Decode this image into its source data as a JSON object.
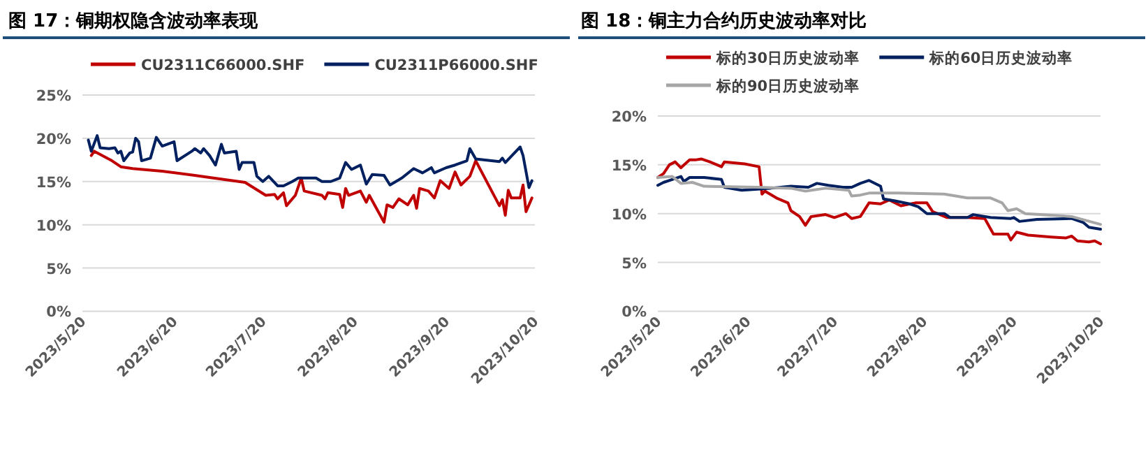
{
  "chart_data": [
    {
      "type": "line",
      "title": "图 17：铜期权隐含波动率表现",
      "legend": "top",
      "grid": "y",
      "marker": "none",
      "line_style": "solid",
      "xlim": [
        "2023-05-20",
        "2023-10-20"
      ],
      "xticks": [
        {
          "value": "2023-05-20",
          "label": "2023/5/20"
        },
        {
          "value": "2023-06-20",
          "label": "2023/6/20"
        },
        {
          "value": "2023-07-20",
          "label": "2023/7/20"
        },
        {
          "value": "2023-08-20",
          "label": "2023/8/20"
        },
        {
          "value": "2023-09-20",
          "label": "2023/9/20"
        },
        {
          "value": "2023-10-20",
          "label": "2023/10/20"
        }
      ],
      "ylim": [
        0,
        25
      ],
      "yticks": [
        {
          "value": 0,
          "label": "0%"
        },
        {
          "value": 5,
          "label": "5%"
        },
        {
          "value": 10,
          "label": "10%"
        },
        {
          "value": 15,
          "label": "15%"
        },
        {
          "value": 20,
          "label": "20%"
        },
        {
          "value": 25,
          "label": "25%"
        }
      ],
      "series": [
        {
          "name": "CU2311C66000.SHF",
          "color": "#c00000",
          "x": [
            "2023-05-23",
            "2023-05-24",
            "2023-05-30",
            "2023-06-02",
            "2023-06-06",
            "2023-06-16",
            "2023-06-27",
            "2023-07-14",
            "2023-07-21",
            "2023-07-24",
            "2023-07-25",
            "2023-07-27",
            "2023-07-28",
            "2023-07-31",
            "2023-08-02",
            "2023-08-03",
            "2023-08-09",
            "2023-08-10",
            "2023-08-11",
            "2023-08-15",
            "2023-08-16",
            "2023-08-17",
            "2023-08-18",
            "2023-08-22",
            "2023-08-24",
            "2023-08-25",
            "2023-08-30",
            "2023-08-31",
            "2023-09-02",
            "2023-09-04",
            "2023-09-07",
            "2023-09-09",
            "2023-09-10",
            "2023-09-11",
            "2023-09-14",
            "2023-09-16",
            "2023-09-18",
            "2023-09-21",
            "2023-09-23",
            "2023-09-25",
            "2023-09-28",
            "2023-09-30",
            "2023-10-08",
            "2023-10-09",
            "2023-10-10",
            "2023-10-11",
            "2023-10-12",
            "2023-10-15",
            "2023-10-16",
            "2023-10-17",
            "2023-10-19"
          ],
          "values": [
            18.0,
            18.5,
            17.4,
            16.7,
            16.5,
            16.2,
            15.7,
            14.9,
            13.4,
            13.5,
            13.0,
            13.7,
            12.2,
            13.4,
            15.4,
            13.9,
            13.4,
            13.0,
            13.7,
            13.5,
            12.0,
            14.2,
            13.4,
            13.9,
            12.6,
            13.4,
            10.3,
            12.3,
            12.0,
            13.0,
            12.3,
            13.4,
            11.9,
            14.2,
            13.9,
            13.1,
            15.1,
            14.2,
            16.1,
            14.6,
            15.6,
            17.4,
            12.2,
            12.9,
            11.1,
            14.0,
            13.1,
            13.1,
            14.6,
            11.5,
            13.1
          ]
        },
        {
          "name": "CU2311P66000.SHF",
          "color": "#002060",
          "x": [
            "2023-05-22",
            "2023-05-23",
            "2023-05-25",
            "2023-05-26",
            "2023-05-29",
            "2023-05-31",
            "2023-06-01",
            "2023-06-02",
            "2023-06-03",
            "2023-06-05",
            "2023-06-06",
            "2023-06-07",
            "2023-06-08",
            "2023-06-09",
            "2023-06-12",
            "2023-06-14",
            "2023-06-16",
            "2023-06-20",
            "2023-06-21",
            "2023-06-26",
            "2023-06-27",
            "2023-06-29",
            "2023-06-30",
            "2023-07-02",
            "2023-07-04",
            "2023-07-06",
            "2023-07-07",
            "2023-07-11",
            "2023-07-12",
            "2023-07-13",
            "2023-07-17",
            "2023-07-18",
            "2023-07-20",
            "2023-07-22",
            "2023-07-25",
            "2023-07-27",
            "2023-07-30",
            "2023-08-01",
            "2023-08-04",
            "2023-08-07",
            "2023-08-09",
            "2023-08-12",
            "2023-08-15",
            "2023-08-17",
            "2023-08-19",
            "2023-08-22",
            "2023-08-24",
            "2023-08-26",
            "2023-08-30",
            "2023-09-01",
            "2023-09-05",
            "2023-09-09",
            "2023-09-12",
            "2023-09-15",
            "2023-09-16",
            "2023-09-20",
            "2023-09-23",
            "2023-09-27",
            "2023-09-28",
            "2023-09-30",
            "2023-10-08",
            "2023-10-09",
            "2023-10-10",
            "2023-10-15",
            "2023-10-16",
            "2023-10-18",
            "2023-10-19"
          ],
          "values": [
            19.8,
            18.5,
            20.3,
            18.9,
            18.8,
            18.9,
            18.3,
            18.5,
            17.4,
            18.3,
            18.4,
            20.0,
            19.6,
            17.4,
            17.7,
            20.1,
            19.1,
            19.6,
            17.4,
            18.5,
            18.8,
            18.3,
            18.8,
            18.0,
            16.9,
            19.3,
            18.3,
            18.5,
            16.4,
            17.2,
            17.2,
            15.6,
            15.0,
            15.6,
            14.5,
            14.5,
            15.0,
            15.4,
            15.4,
            15.4,
            15.0,
            15.0,
            15.4,
            17.2,
            16.4,
            16.9,
            14.7,
            15.8,
            15.7,
            14.6,
            15.4,
            16.5,
            16.0,
            16.6,
            16.0,
            16.6,
            16.9,
            17.4,
            18.8,
            17.6,
            17.3,
            17.7,
            17.2,
            19.0,
            18.0,
            14.3,
            15.1
          ]
        }
      ]
    },
    {
      "type": "line",
      "title": "图 18：铜主力合约历史波动率对比",
      "legend": "top",
      "grid": "y",
      "marker": "none",
      "line_style": "solid",
      "xlim": [
        "2023-05-20",
        "2023-10-20"
      ],
      "xticks": [
        {
          "value": "2023-05-20",
          "label": "2023/5/20"
        },
        {
          "value": "2023-06-20",
          "label": "2023/6/20"
        },
        {
          "value": "2023-07-20",
          "label": "2023/7/20"
        },
        {
          "value": "2023-08-20",
          "label": "2023/8/20"
        },
        {
          "value": "2023-09-20",
          "label": "2023/9/20"
        },
        {
          "value": "2023-10-20",
          "label": "2023/10/20"
        }
      ],
      "ylim": [
        0,
        20
      ],
      "yticks": [
        {
          "value": 0,
          "label": "0%"
        },
        {
          "value": 5,
          "label": "5%"
        },
        {
          "value": 10,
          "label": "10%"
        },
        {
          "value": 15,
          "label": "15%"
        },
        {
          "value": 20,
          "label": "20%"
        }
      ],
      "series": [
        {
          "name": "标的30日历史波动率",
          "color": "#c00000",
          "x": [
            "2023-05-20",
            "2023-05-22",
            "2023-05-24",
            "2023-05-26",
            "2023-05-28",
            "2023-05-31",
            "2023-06-02",
            "2023-06-04",
            "2023-06-07",
            "2023-06-11",
            "2023-06-12",
            "2023-06-19",
            "2023-06-24",
            "2023-06-25",
            "2023-06-26",
            "2023-06-30",
            "2023-07-04",
            "2023-07-05",
            "2023-07-08",
            "2023-07-10",
            "2023-07-12",
            "2023-07-17",
            "2023-07-20",
            "2023-07-24",
            "2023-07-26",
            "2023-07-29",
            "2023-08-01",
            "2023-08-05",
            "2023-08-08",
            "2023-08-12",
            "2023-08-17",
            "2023-08-21",
            "2023-08-23",
            "2023-08-28",
            "2023-09-04",
            "2023-09-10",
            "2023-09-13",
            "2023-09-18",
            "2023-09-19",
            "2023-09-21",
            "2023-09-25",
            "2023-10-03",
            "2023-10-08",
            "2023-10-10",
            "2023-10-12",
            "2023-10-16",
            "2023-10-18",
            "2023-10-20"
          ],
          "values": [
            13.7,
            14.1,
            15.0,
            15.3,
            14.7,
            15.5,
            15.5,
            15.6,
            15.3,
            14.8,
            15.3,
            15.1,
            14.8,
            12.0,
            12.3,
            11.6,
            11.1,
            10.3,
            9.7,
            8.8,
            9.7,
            9.9,
            9.6,
            10.0,
            9.5,
            9.7,
            11.1,
            11.0,
            11.4,
            10.8,
            11.1,
            11.1,
            10.2,
            9.6,
            9.6,
            9.5,
            7.9,
            7.9,
            7.3,
            8.1,
            7.8,
            7.6,
            7.5,
            7.7,
            7.2,
            7.1,
            7.2,
            6.9
          ]
        },
        {
          "name": "标的60日历史波动率",
          "color": "#002060",
          "x": [
            "2023-05-20",
            "2023-05-22",
            "2023-05-25",
            "2023-05-28",
            "2023-05-29",
            "2023-05-31",
            "2023-06-05",
            "2023-06-11",
            "2023-06-12",
            "2023-06-18",
            "2023-06-28",
            "2023-07-05",
            "2023-07-11",
            "2023-07-14",
            "2023-07-18",
            "2023-07-23",
            "2023-07-26",
            "2023-07-29",
            "2023-08-01",
            "2023-08-05",
            "2023-08-06",
            "2023-08-10",
            "2023-08-15",
            "2023-08-18",
            "2023-08-21",
            "2023-08-27",
            "2023-08-29",
            "2023-09-04",
            "2023-09-06",
            "2023-09-12",
            "2023-09-19",
            "2023-09-20",
            "2023-09-22",
            "2023-09-28",
            "2023-10-10",
            "2023-10-14",
            "2023-10-16",
            "2023-10-20"
          ],
          "values": [
            12.9,
            13.2,
            13.5,
            13.8,
            13.3,
            13.7,
            13.7,
            13.5,
            12.7,
            12.4,
            12.6,
            12.8,
            12.7,
            13.1,
            12.9,
            12.7,
            12.7,
            13.1,
            13.4,
            12.8,
            11.5,
            11.3,
            11.0,
            10.7,
            10.0,
            10.0,
            9.6,
            9.6,
            9.9,
            9.6,
            9.5,
            9.6,
            9.2,
            9.4,
            9.5,
            9.1,
            8.6,
            8.4
          ]
        },
        {
          "name": "标的90日历史波动率",
          "color": "#a6a6a6",
          "x": [
            "2023-05-20",
            "2023-05-25",
            "2023-05-28",
            "2023-06-01",
            "2023-06-05",
            "2023-06-24",
            "2023-07-05",
            "2023-07-10",
            "2023-07-17",
            "2023-07-25",
            "2023-07-26",
            "2023-07-29",
            "2023-08-01",
            "2023-08-11",
            "2023-08-27",
            "2023-09-04",
            "2023-09-12",
            "2023-09-16",
            "2023-09-18",
            "2023-09-21",
            "2023-09-24",
            "2023-10-10",
            "2023-10-20"
          ],
          "values": [
            13.7,
            13.8,
            13.1,
            13.2,
            12.8,
            12.7,
            12.6,
            12.3,
            12.6,
            12.4,
            11.8,
            11.9,
            12.1,
            12.1,
            12.0,
            11.6,
            11.6,
            11.1,
            10.3,
            10.5,
            10.0,
            9.7,
            8.9
          ]
        }
      ]
    }
  ]
}
